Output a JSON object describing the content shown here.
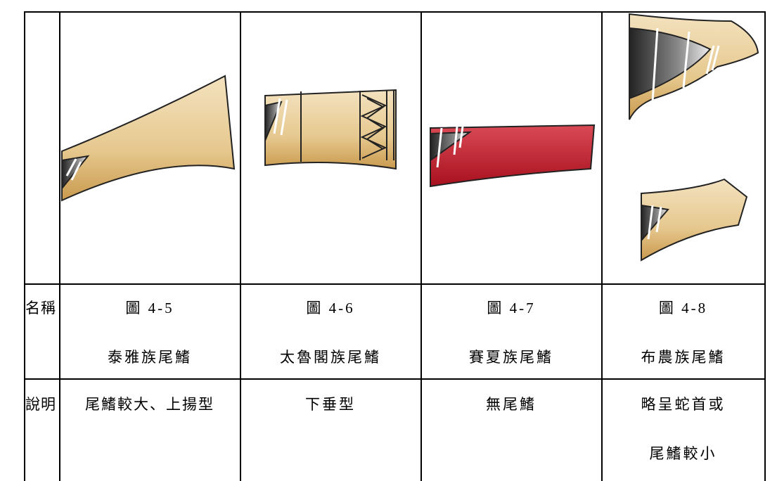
{
  "table": {
    "rows": [
      {
        "label": "名稱",
        "cells": [
          [
            "圖 4-5",
            "泰雅族尾鰭"
          ],
          [
            "圖 4-6",
            "太魯閣族尾鰭"
          ],
          [
            "圖 4-7",
            "賽夏族尾鰭"
          ],
          [
            "圖 4-8",
            "布農族尾鰭"
          ]
        ]
      },
      {
        "label": "說明",
        "cells": [
          [
            "尾鰭較大、上揚型"
          ],
          [
            "下垂型"
          ],
          [
            "無尾鰭"
          ],
          [
            "略呈蛇首或",
            "尾鰭較小"
          ]
        ]
      }
    ]
  }
}
